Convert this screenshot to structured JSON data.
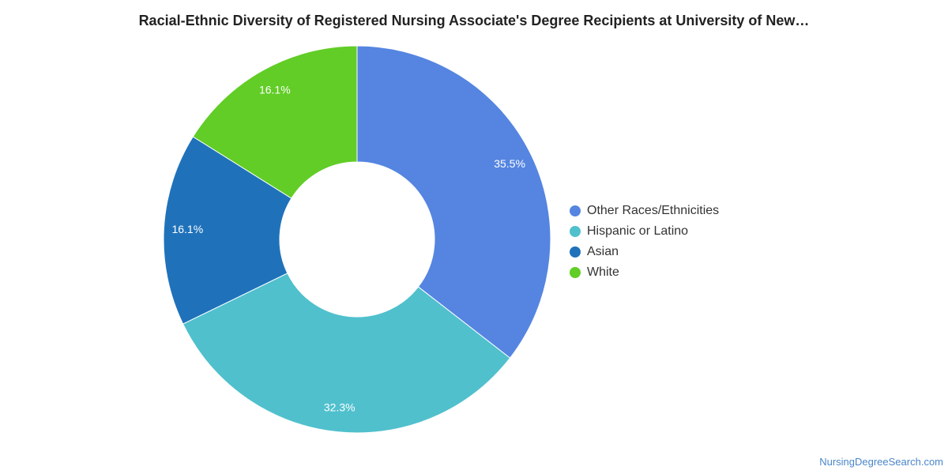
{
  "title": "Racial-Ethnic Diversity of Registered Nursing Associate's Degree Recipients at University of New…",
  "source": "NursingDegreeSearch.com",
  "chart_data": {
    "type": "pie",
    "style": "donut",
    "legend_position": "right",
    "series": [
      {
        "name": "Other Races/Ethnicities",
        "value": 35.5,
        "label": "35.5%",
        "color": "#5585e1"
      },
      {
        "name": "Hispanic or Latino",
        "value": 32.3,
        "label": "32.3%",
        "color": "#50c0cd"
      },
      {
        "name": "Asian",
        "value": 16.1,
        "label": "16.1%",
        "color": "#1f72ba"
      },
      {
        "name": "White",
        "value": 16.1,
        "label": "16.1%",
        "color": "#61cd26"
      }
    ]
  }
}
